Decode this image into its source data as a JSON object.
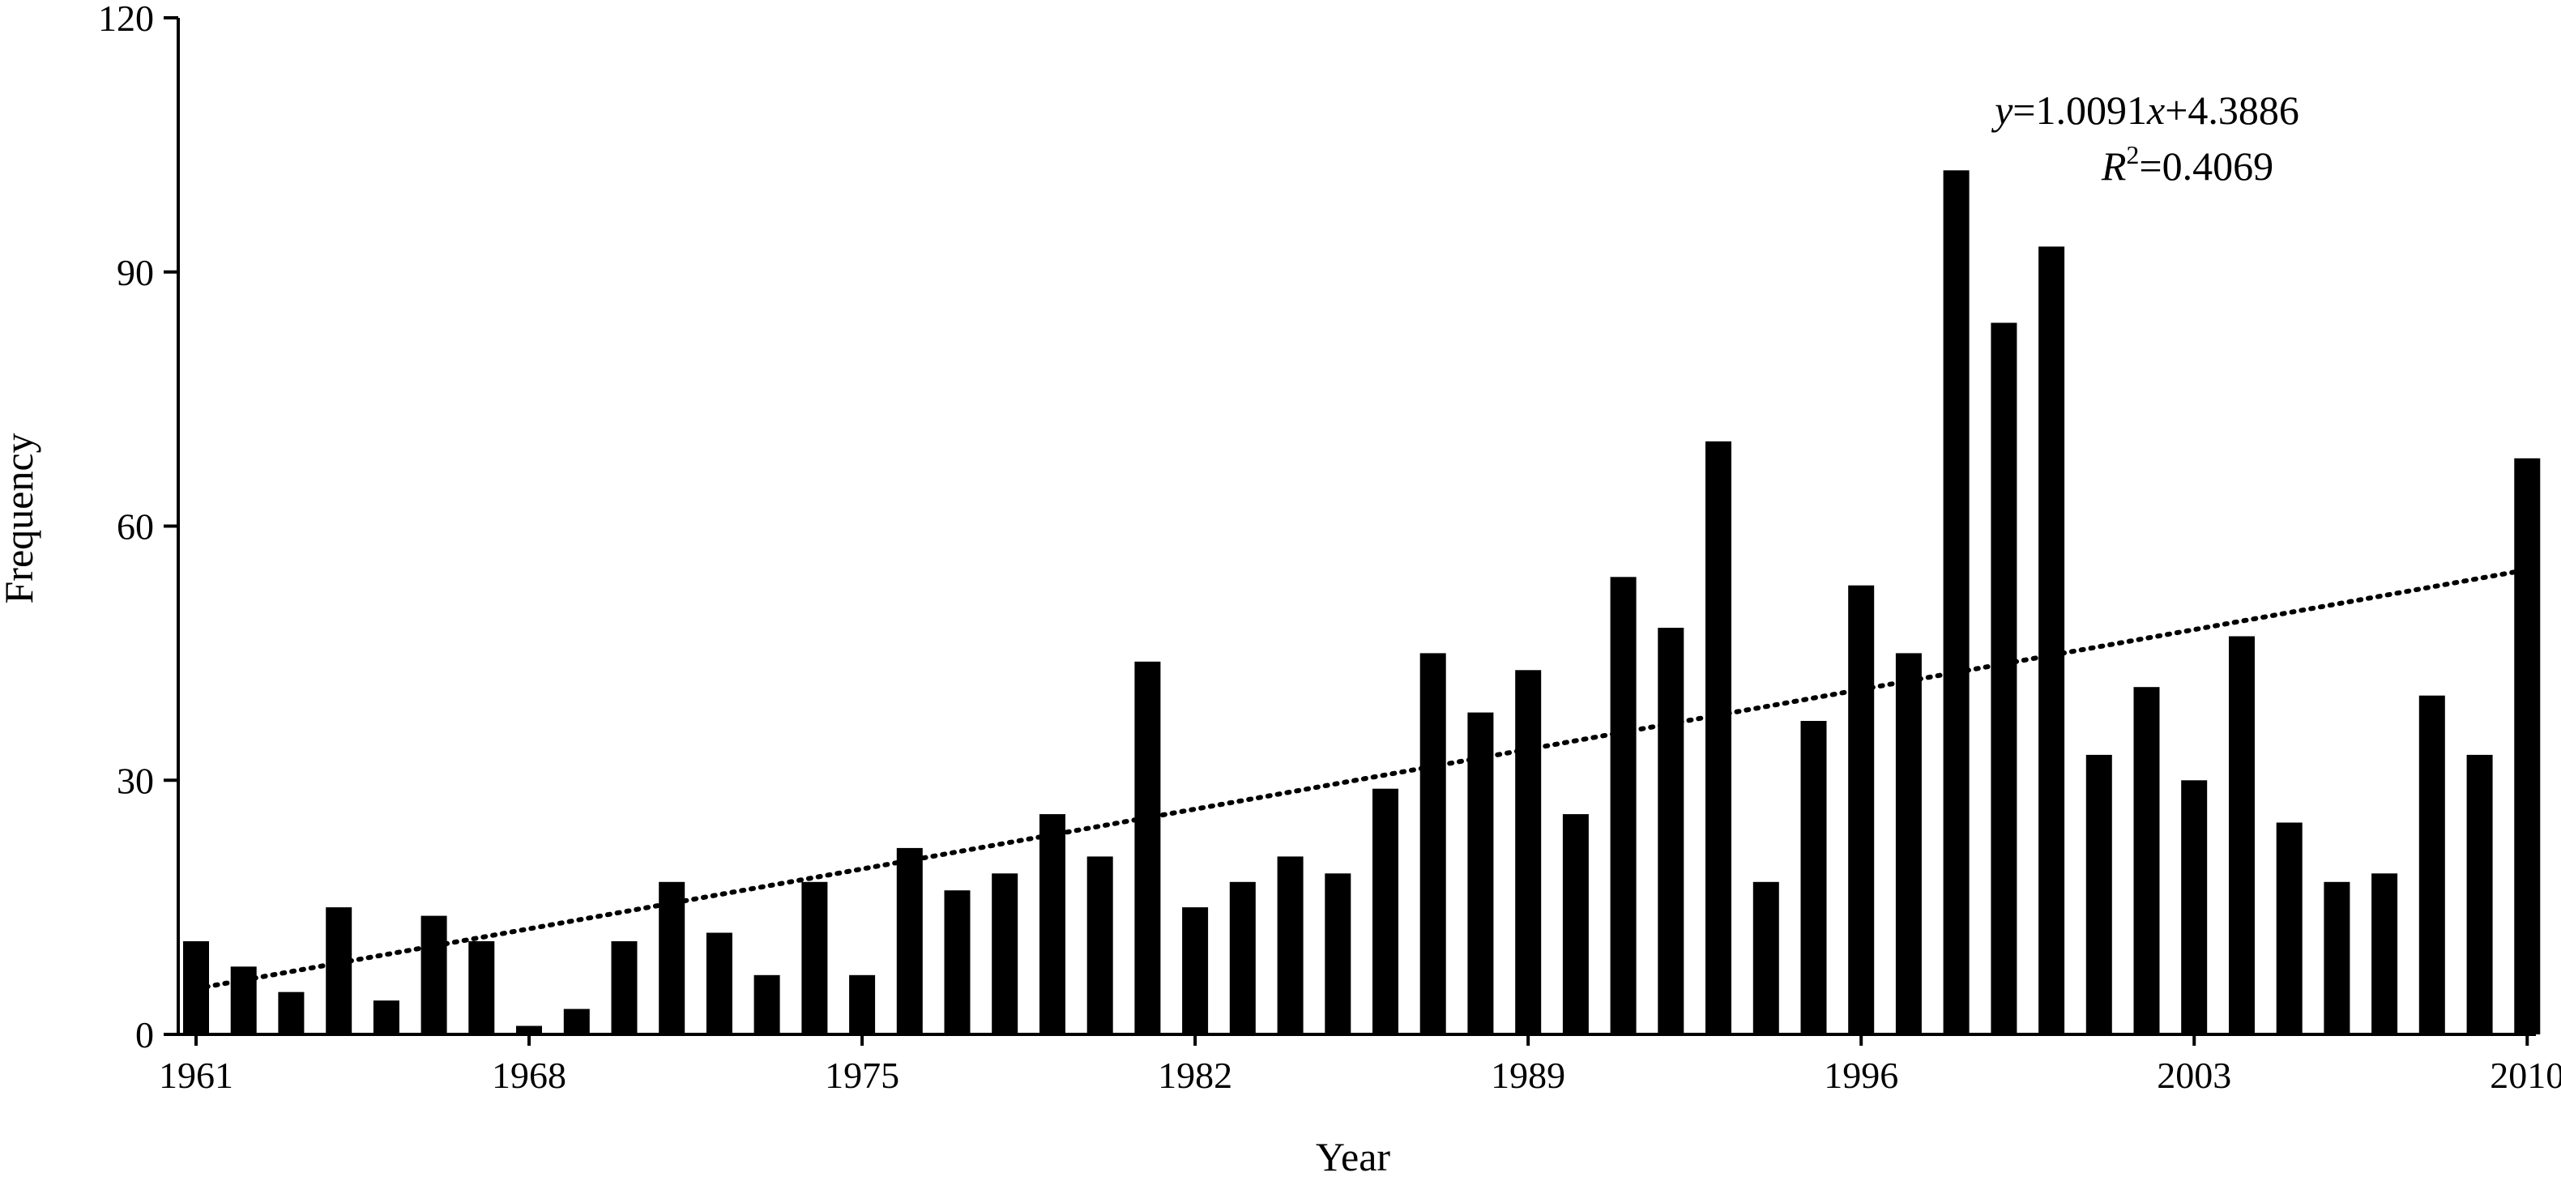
{
  "chart_data": {
    "type": "bar",
    "xlabel": "Year",
    "ylabel": "Frequency",
    "ylim": [
      0,
      120
    ],
    "yticks": [
      0,
      30,
      60,
      90,
      120
    ],
    "xtick_labels": [
      "1961",
      "1968",
      "1975",
      "1982",
      "1989",
      "1996",
      "2003",
      "2010"
    ],
    "categories": [
      1961,
      1962,
      1963,
      1964,
      1965,
      1966,
      1967,
      1968,
      1969,
      1970,
      1971,
      1972,
      1973,
      1974,
      1975,
      1976,
      1977,
      1978,
      1979,
      1980,
      1981,
      1982,
      1983,
      1984,
      1985,
      1986,
      1987,
      1988,
      1989,
      1990,
      1991,
      1992,
      1993,
      1994,
      1995,
      1996,
      1997,
      1998,
      1999,
      2000,
      2001,
      2002,
      2003,
      2004,
      2005,
      2006,
      2007,
      2008,
      2009,
      2010
    ],
    "values": [
      11,
      8,
      5,
      15,
      4,
      14,
      11,
      1,
      3,
      11,
      18,
      12,
      7,
      18,
      7,
      22,
      17,
      19,
      26,
      21,
      44,
      15,
      18,
      21,
      19,
      29,
      45,
      38,
      43,
      26,
      54,
      48,
      70,
      18,
      37,
      53,
      45,
      102,
      84,
      93,
      33,
      41,
      30,
      47,
      25,
      18,
      19,
      40,
      33,
      68
    ],
    "trendline": {
      "style": "dotted",
      "slope": 1.0091,
      "intercept": 4.3886
    },
    "annotation": {
      "equation_var_y": "y",
      "equation_rest": "=1.0091",
      "equation_var_x": "x",
      "equation_tail": "+4.3886",
      "r2_var": "R",
      "r2_sup": "2",
      "r2_value": "=0.4069"
    },
    "grid": false,
    "legend": "none"
  }
}
